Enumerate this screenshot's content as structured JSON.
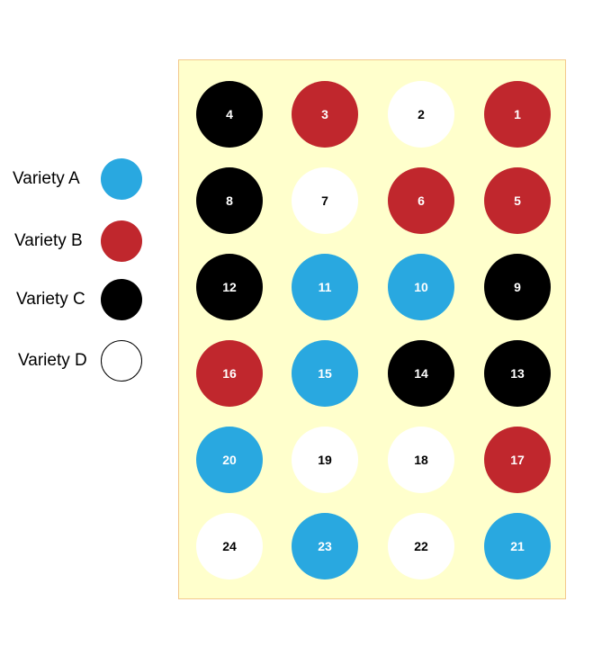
{
  "legend": [
    {
      "label": "Variety A",
      "color": "#29a8e0"
    },
    {
      "label": "Variety B",
      "color": "#c0272d"
    },
    {
      "label": "Variety C",
      "color": "#000000"
    },
    {
      "label": "Variety D",
      "color": "#ffffff"
    }
  ],
  "plots": [
    {
      "number": "4",
      "variety": "Variety C"
    },
    {
      "number": "3",
      "variety": "Variety B"
    },
    {
      "number": "2",
      "variety": "Variety D"
    },
    {
      "number": "1",
      "variety": "Variety B"
    },
    {
      "number": "8",
      "variety": "Variety C"
    },
    {
      "number": "7",
      "variety": "Variety D"
    },
    {
      "number": "6",
      "variety": "Variety B"
    },
    {
      "number": "5",
      "variety": "Variety B"
    },
    {
      "number": "12",
      "variety": "Variety C"
    },
    {
      "number": "11",
      "variety": "Variety A"
    },
    {
      "number": "10",
      "variety": "Variety A"
    },
    {
      "number": "9",
      "variety": "Variety C"
    },
    {
      "number": "16",
      "variety": "Variety B"
    },
    {
      "number": "15",
      "variety": "Variety A"
    },
    {
      "number": "14",
      "variety": "Variety C"
    },
    {
      "number": "13",
      "variety": "Variety C"
    },
    {
      "number": "20",
      "variety": "Variety A"
    },
    {
      "number": "19",
      "variety": "Variety D"
    },
    {
      "number": "18",
      "variety": "Variety D"
    },
    {
      "number": "17",
      "variety": "Variety B"
    },
    {
      "number": "24",
      "variety": "Variety D"
    },
    {
      "number": "23",
      "variety": "Variety A"
    },
    {
      "number": "22",
      "variety": "Variety D"
    },
    {
      "number": "21",
      "variety": "Variety A"
    }
  ]
}
